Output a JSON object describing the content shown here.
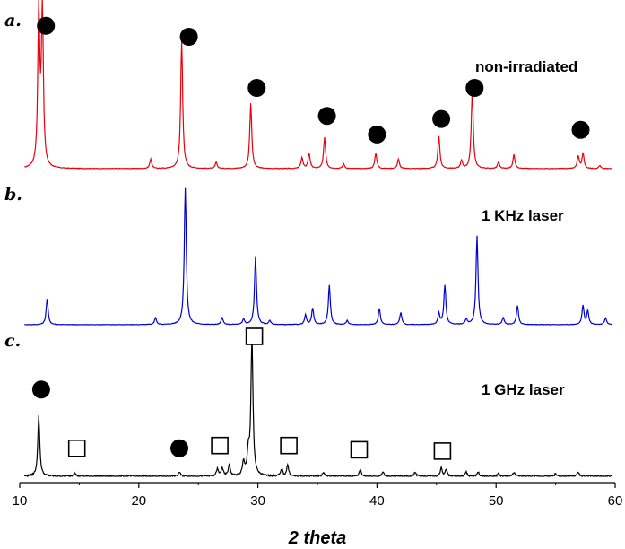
{
  "chart_data": {
    "type": "line",
    "xlabel": "2 theta",
    "xlim": [
      10,
      60
    ],
    "x_ticks": [
      "10",
      "20",
      "30",
      "40",
      "50",
      "60"
    ],
    "series": [
      {
        "panel": "a.",
        "name": "non-irradiated",
        "color": "#e8000b",
        "peaks": [
          {
            "x": 11.6,
            "h": 1.0
          },
          {
            "x": 11.9,
            "h": 1.0
          },
          {
            "x": 21.0,
            "h": 0.06
          },
          {
            "x": 23.6,
            "h": 0.82
          },
          {
            "x": 26.5,
            "h": 0.04
          },
          {
            "x": 29.4,
            "h": 0.42
          },
          {
            "x": 33.7,
            "h": 0.07
          },
          {
            "x": 34.3,
            "h": 0.1
          },
          {
            "x": 35.6,
            "h": 0.2
          },
          {
            "x": 37.2,
            "h": 0.03
          },
          {
            "x": 39.9,
            "h": 0.1
          },
          {
            "x": 41.8,
            "h": 0.06
          },
          {
            "x": 45.2,
            "h": 0.21
          },
          {
            "x": 47.1,
            "h": 0.05
          },
          {
            "x": 48.0,
            "h": 0.5
          },
          {
            "x": 50.2,
            "h": 0.04
          },
          {
            "x": 51.5,
            "h": 0.09
          },
          {
            "x": 56.9,
            "h": 0.08
          },
          {
            "x": 57.3,
            "h": 0.1
          },
          {
            "x": 58.7,
            "h": 0.02
          }
        ]
      },
      {
        "panel": "b.",
        "name": "1 KHz laser",
        "color": "#0000d0",
        "peaks": [
          {
            "x": 12.3,
            "h": 0.19
          },
          {
            "x": 21.4,
            "h": 0.05
          },
          {
            "x": 23.9,
            "h": 1.0
          },
          {
            "x": 27.0,
            "h": 0.05
          },
          {
            "x": 28.8,
            "h": 0.04
          },
          {
            "x": 29.8,
            "h": 0.5
          },
          {
            "x": 31.0,
            "h": 0.03
          },
          {
            "x": 34.0,
            "h": 0.07
          },
          {
            "x": 34.6,
            "h": 0.12
          },
          {
            "x": 36.0,
            "h": 0.29
          },
          {
            "x": 37.5,
            "h": 0.03
          },
          {
            "x": 40.2,
            "h": 0.12
          },
          {
            "x": 42.0,
            "h": 0.09
          },
          {
            "x": 45.2,
            "h": 0.08
          },
          {
            "x": 45.7,
            "h": 0.29
          },
          {
            "x": 47.5,
            "h": 0.04
          },
          {
            "x": 48.4,
            "h": 0.65
          },
          {
            "x": 50.6,
            "h": 0.05
          },
          {
            "x": 51.8,
            "h": 0.14
          },
          {
            "x": 57.3,
            "h": 0.14
          },
          {
            "x": 57.7,
            "h": 0.1
          },
          {
            "x": 59.2,
            "h": 0.05
          }
        ]
      },
      {
        "panel": "c.",
        "name": "1 GHz laser",
        "color": "#000000",
        "peaks": [
          {
            "x": 11.6,
            "h": 0.43
          },
          {
            "x": 14.6,
            "h": 0.03
          },
          {
            "x": 23.4,
            "h": 0.03
          },
          {
            "x": 26.6,
            "h": 0.05
          },
          {
            "x": 27.0,
            "h": 0.06
          },
          {
            "x": 27.6,
            "h": 0.08
          },
          {
            "x": 28.8,
            "h": 0.1
          },
          {
            "x": 29.2,
            "h": 0.16
          },
          {
            "x": 29.5,
            "h": 1.0
          },
          {
            "x": 32.0,
            "h": 0.05
          },
          {
            "x": 32.5,
            "h": 0.08
          },
          {
            "x": 35.5,
            "h": 0.03
          },
          {
            "x": 38.6,
            "h": 0.05
          },
          {
            "x": 40.5,
            "h": 0.03
          },
          {
            "x": 43.2,
            "h": 0.03
          },
          {
            "x": 45.4,
            "h": 0.06
          },
          {
            "x": 45.8,
            "h": 0.05
          },
          {
            "x": 47.5,
            "h": 0.03
          },
          {
            "x": 48.5,
            "h": 0.03
          },
          {
            "x": 50.2,
            "h": 0.02
          },
          {
            "x": 51.5,
            "h": 0.03
          },
          {
            "x": 55.0,
            "h": 0.02
          },
          {
            "x": 56.9,
            "h": 0.03
          }
        ]
      }
    ],
    "markers": [
      {
        "shape": "filled-circle",
        "panel": "a.",
        "x": 12.2,
        "y": 0.92
      },
      {
        "shape": "filled-circle",
        "panel": "a.",
        "x": 24.2,
        "y": 0.85
      },
      {
        "shape": "filled-circle",
        "panel": "a.",
        "x": 29.9,
        "y": 0.52
      },
      {
        "shape": "filled-circle",
        "panel": "a.",
        "x": 35.8,
        "y": 0.34
      },
      {
        "shape": "filled-circle",
        "panel": "a.",
        "x": 40.0,
        "y": 0.22
      },
      {
        "shape": "filled-circle",
        "panel": "a.",
        "x": 45.4,
        "y": 0.32
      },
      {
        "shape": "filled-circle",
        "panel": "a.",
        "x": 48.2,
        "y": 0.52
      },
      {
        "shape": "filled-circle",
        "panel": "a.",
        "x": 57.1,
        "y": 0.25
      },
      {
        "shape": "filled-circle",
        "panel": "c.",
        "x": 11.8,
        "y": 0.62
      },
      {
        "shape": "filled-circle",
        "panel": "c.",
        "x": 23.4,
        "y": 0.2
      },
      {
        "shape": "open-square",
        "panel": "c.",
        "x": 14.8,
        "y": 0.2
      },
      {
        "shape": "open-square",
        "panel": "c.",
        "x": 26.8,
        "y": 0.22
      },
      {
        "shape": "open-square",
        "panel": "c.",
        "x": 29.7,
        "y": 1.0
      },
      {
        "shape": "open-square",
        "panel": "c.",
        "x": 32.6,
        "y": 0.22
      },
      {
        "shape": "open-square",
        "panel": "c.",
        "x": 38.5,
        "y": 0.19
      },
      {
        "shape": "open-square",
        "panel": "c.",
        "x": 45.5,
        "y": 0.18
      }
    ]
  }
}
